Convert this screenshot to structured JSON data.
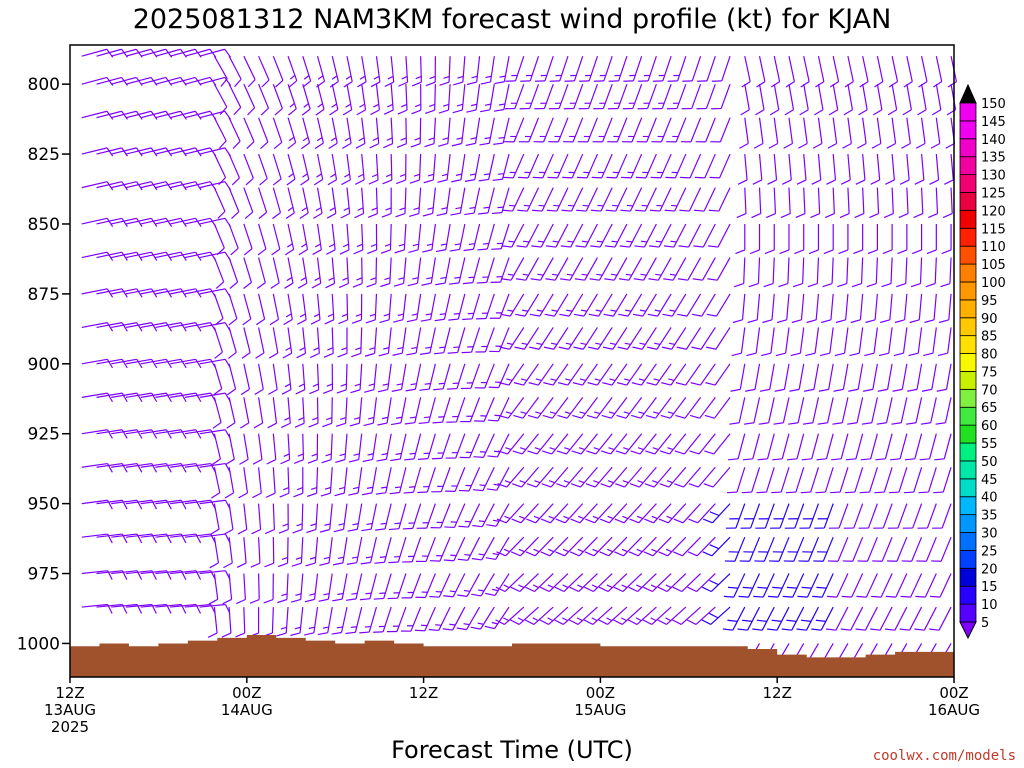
{
  "chart_data": {
    "type": "wind-profile",
    "title": "2025081312 NAM3KM forecast wind profile (kt) for KJAN",
    "xlabel": "Forecast Time (UTC)",
    "ylabel": "",
    "ylim": [
      1012,
      786
    ],
    "y_ticks": [
      800,
      825,
      850,
      875,
      900,
      925,
      950,
      975,
      1000
    ],
    "x_range_hours": [
      0,
      60
    ],
    "x_ticks": [
      {
        "hour": 0,
        "line1": "12Z",
        "line2": "13AUG",
        "line3": "2025"
      },
      {
        "hour": 12,
        "line1": "00Z",
        "line2": "14AUG",
        "line3": ""
      },
      {
        "hour": 24,
        "line1": "12Z",
        "line2": "",
        "line3": ""
      },
      {
        "hour": 36,
        "line1": "00Z",
        "line2": "15AUG",
        "line3": ""
      },
      {
        "hour": 48,
        "line1": "12Z",
        "line2": "",
        "line3": ""
      },
      {
        "hour": 60,
        "line1": "00Z",
        "line2": "16AUG",
        "line3": ""
      }
    ],
    "levels_hpa": [
      790,
      800,
      812,
      825,
      837,
      850,
      862,
      875,
      887,
      900,
      912,
      925,
      937,
      950,
      962,
      975,
      987,
      1000
    ],
    "barb_hours_step": 1,
    "surface_pressure": [
      {
        "hour": 0,
        "p": 1001
      },
      {
        "hour": 2,
        "p": 1000
      },
      {
        "hour": 4,
        "p": 1001
      },
      {
        "hour": 6,
        "p": 1000
      },
      {
        "hour": 8,
        "p": 999
      },
      {
        "hour": 10,
        "p": 998
      },
      {
        "hour": 12,
        "p": 997
      },
      {
        "hour": 14,
        "p": 998
      },
      {
        "hour": 16,
        "p": 999
      },
      {
        "hour": 18,
        "p": 1000
      },
      {
        "hour": 20,
        "p": 999
      },
      {
        "hour": 22,
        "p": 1000
      },
      {
        "hour": 24,
        "p": 1001
      },
      {
        "hour": 26,
        "p": 1001
      },
      {
        "hour": 28,
        "p": 1001
      },
      {
        "hour": 30,
        "p": 1000
      },
      {
        "hour": 32,
        "p": 1000
      },
      {
        "hour": 34,
        "p": 1000
      },
      {
        "hour": 36,
        "p": 1001
      },
      {
        "hour": 38,
        "p": 1001
      },
      {
        "hour": 40,
        "p": 1001
      },
      {
        "hour": 42,
        "p": 1001
      },
      {
        "hour": 44,
        "p": 1001
      },
      {
        "hour": 46,
        "p": 1002
      },
      {
        "hour": 48,
        "p": 1004
      },
      {
        "hour": 50,
        "p": 1005
      },
      {
        "hour": 52,
        "p": 1005
      },
      {
        "hour": 54,
        "p": 1004
      },
      {
        "hour": 56,
        "p": 1003
      },
      {
        "hour": 58,
        "p": 1003
      },
      {
        "hour": 60,
        "p": 1003
      }
    ],
    "colorbar": {
      "levels": [
        5,
        10,
        15,
        20,
        25,
        30,
        35,
        40,
        45,
        50,
        55,
        60,
        65,
        70,
        75,
        80,
        85,
        90,
        95,
        100,
        105,
        110,
        115,
        120,
        125,
        130,
        135,
        140,
        145,
        150
      ],
      "colors": [
        "#7d00ff",
        "#5500ff",
        "#2800ff",
        "#0000d8",
        "#0040ff",
        "#0070ff",
        "#0098ff",
        "#00b8ff",
        "#00dcc8",
        "#00e8a8",
        "#00f080",
        "#20e020",
        "#40e840",
        "#80f040",
        "#c8f000",
        "#f8f800",
        "#ffe000",
        "#ffc800",
        "#ffb000",
        "#ff9800",
        "#ff8000",
        "#ff5000",
        "#ff2000",
        "#f00000",
        "#e80040",
        "#f00070",
        "#f000a0",
        "#f000c8",
        "#f000f0",
        "#f000f0"
      ]
    },
    "wind_direction_note": "",
    "terrain_color": "#a0522d",
    "barb_color_default": "#7d00ff",
    "barb_color_strong": "#2800ff"
  },
  "credit": "coolwx.com/models"
}
